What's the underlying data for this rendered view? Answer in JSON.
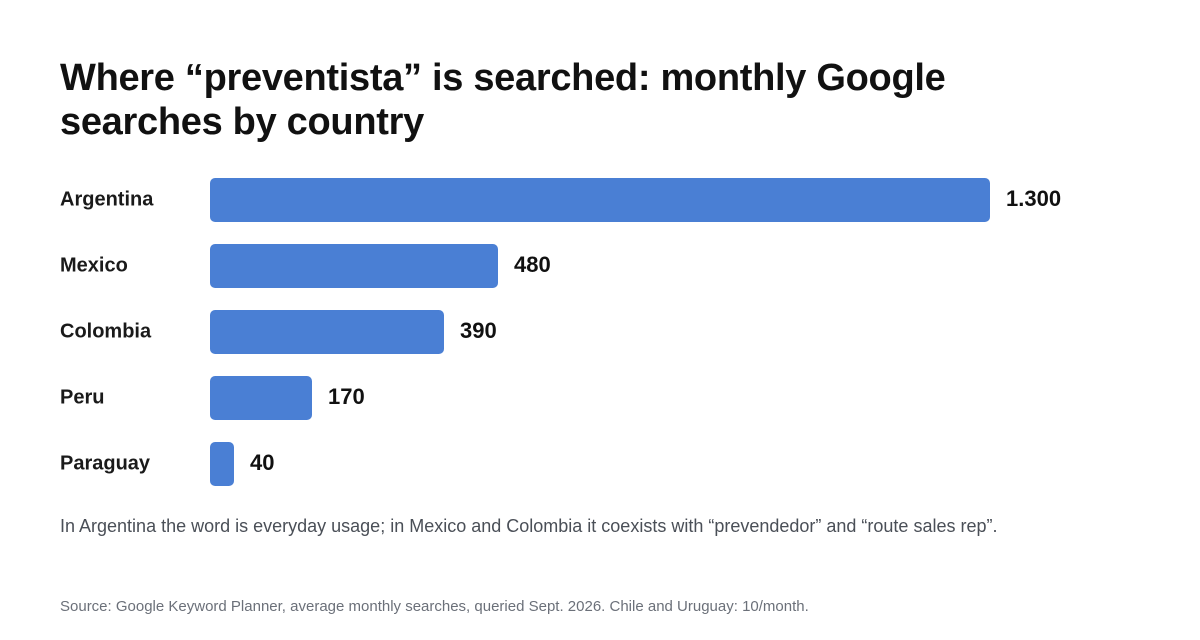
{
  "title": "Where “preventista” is searched: monthly Google searches by country",
  "note": "In Argentina the word is everyday usage; in Mexico and Colombia it coexists with “prevendedor” and “route sales rep”.",
  "source": "Source: Google Keyword Planner, average monthly searches, queried Sept. 2026. Chile and Uruguay: 10/month.",
  "colors": {
    "bar": "#4a7fd4",
    "text": "#111111",
    "muted": "#4a4f57"
  },
  "chart_data": {
    "type": "bar",
    "orientation": "horizontal",
    "categories": [
      "Argentina",
      "Mexico",
      "Colombia",
      "Peru",
      "Paraguay"
    ],
    "values": [
      1300,
      480,
      390,
      170,
      40
    ],
    "value_labels": [
      "1.300",
      "480",
      "390",
      "170",
      "40"
    ],
    "xlim": [
      0,
      1300
    ],
    "grid": false,
    "legend": "none"
  }
}
